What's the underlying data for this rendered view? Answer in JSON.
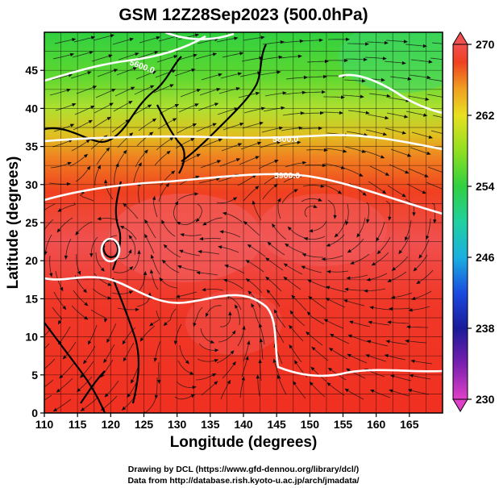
{
  "title": "GSM 12Z28Sep2023 (500.0hPa)",
  "xlabel": "Longitude (degrees)",
  "ylabel": "Latitude  (degrees)",
  "credits": [
    "Drawing by DCL (https://www.gfd-dennou.org/library/dcl/)",
    "Data from http://database.rish.kyoto-u.ac.jp/arch/jmadata/"
  ],
  "map": {
    "lon_range": [
      110,
      170
    ],
    "lat_range": [
      0,
      50
    ],
    "lon_ticks": [
      110,
      115,
      120,
      125,
      130,
      135,
      140,
      145,
      150,
      155,
      160,
      165
    ],
    "lat_ticks": [
      0,
      5,
      10,
      15,
      20,
      25,
      30,
      35,
      40,
      45
    ],
    "grid_step_deg": 2.5,
    "field": "500 hPa temperature (K) with geopotential height contours and wind streamlines",
    "contour_labels": [
      "5900.0",
      "5800.0",
      "5600.0"
    ]
  },
  "colorbar": {
    "range": [
      230,
      270
    ],
    "tick_labels": [
      "270",
      "262",
      "254",
      "246",
      "238",
      "230"
    ],
    "stops": [
      {
        "value": 230,
        "color": "#e040c8"
      },
      {
        "value": 234,
        "color": "#7a1fb0"
      },
      {
        "value": 238,
        "color": "#1a1a9a"
      },
      {
        "value": 242,
        "color": "#1a4be0"
      },
      {
        "value": 246,
        "color": "#1ab0e0"
      },
      {
        "value": 250,
        "color": "#20d0a0"
      },
      {
        "value": 254,
        "color": "#30d040"
      },
      {
        "value": 258,
        "color": "#90e020"
      },
      {
        "value": 262,
        "color": "#e8e020"
      },
      {
        "value": 265,
        "color": "#f0a020"
      },
      {
        "value": 268,
        "color": "#f04020"
      },
      {
        "value": 270,
        "color": "#f05050"
      }
    ]
  }
}
